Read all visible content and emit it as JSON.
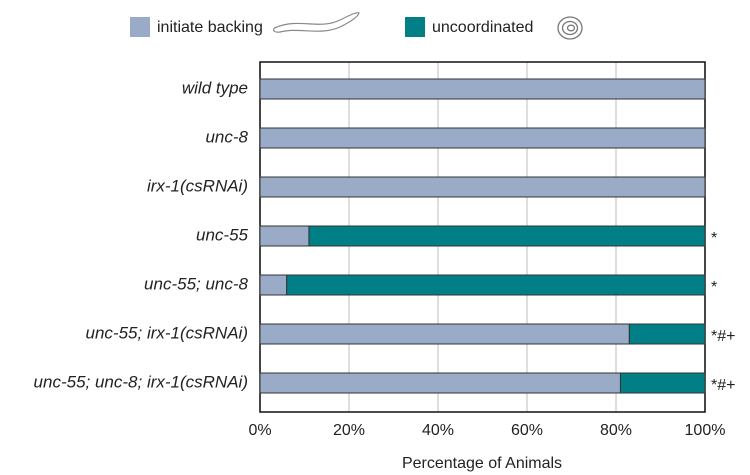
{
  "chart_data": {
    "type": "stacked-bar",
    "orientation": "horizontal",
    "categories": [
      "wild type",
      "unc-8",
      "irx-1(csRNAi)",
      "unc-55",
      "unc-55; unc-8",
      "unc-55; irx-1(csRNAi)",
      "unc-55; unc-8; irx-1(csRNAi)"
    ],
    "series": [
      {
        "name": "initiate backing",
        "color": "#9aabc8",
        "values": [
          100,
          100,
          100,
          11,
          6,
          83,
          81
        ]
      },
      {
        "name": "uncoordinated",
        "color": "#007f86",
        "values": [
          0,
          0,
          0,
          89,
          94,
          17,
          19
        ]
      }
    ],
    "significance": [
      null,
      null,
      null,
      "*",
      "*",
      "*#+",
      "*#+"
    ],
    "xlabel": "Percentage of Animals",
    "xlim": [
      0,
      100
    ],
    "xticks": [
      {
        "value": 0,
        "label": "0%"
      },
      {
        "value": 20,
        "label": "20%"
      },
      {
        "value": 40,
        "label": "40%"
      },
      {
        "value": 60,
        "label": "60%"
      },
      {
        "value": 80,
        "label": "80%"
      },
      {
        "value": 100,
        "label": "100%"
      }
    ],
    "grid": true
  }
}
